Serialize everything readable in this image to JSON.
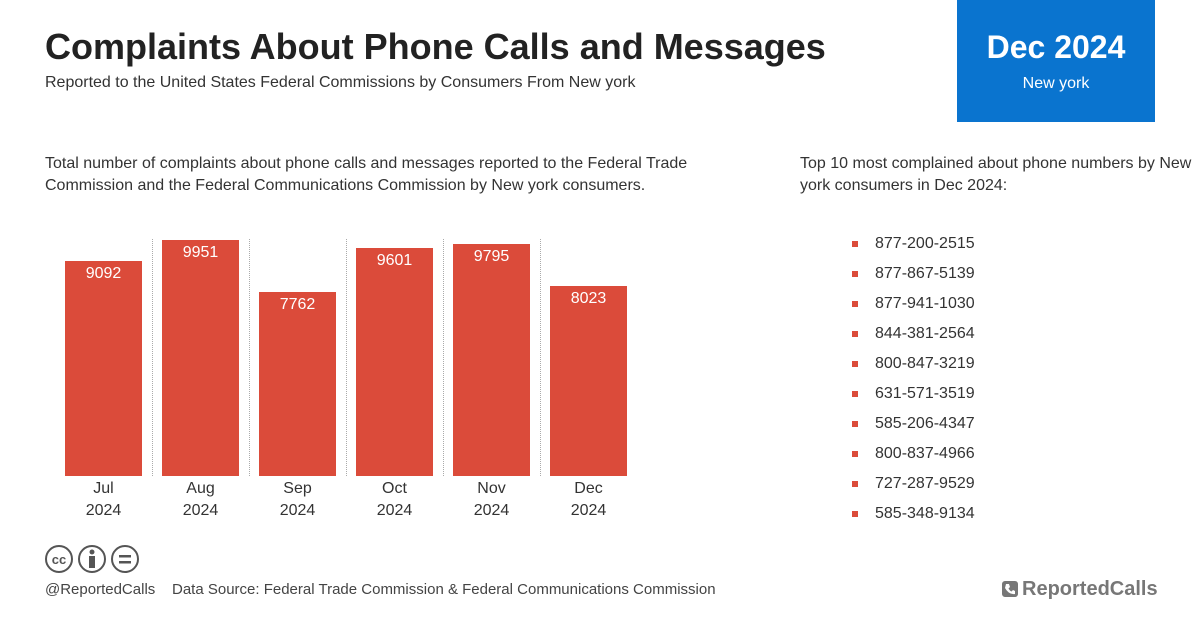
{
  "header": {
    "title": "Complaints About Phone Calls and Messages",
    "subtitle": "Reported to the United States Federal Commissions by Consumers From New york"
  },
  "badge": {
    "period": "Dec 2024",
    "location": "New york"
  },
  "chart_data": {
    "type": "bar",
    "description": "Total number of complaints about phone calls and messages reported to the Federal Trade Commission and the Federal Communications Commission by New york consumers.",
    "categories": [
      "Jul 2024",
      "Aug 2024",
      "Sep 2024",
      "Oct 2024",
      "Nov 2024",
      "Dec 2024"
    ],
    "values": [
      9092,
      9951,
      7762,
      9601,
      9795,
      8023
    ],
    "color": "#db4b3a",
    "ylim": [
      0,
      10000
    ]
  },
  "top_numbers": {
    "heading": "Top 10 most complained about phone numbers by New york consumers in Dec 2024:",
    "items": [
      "877-200-2515",
      "877-867-5139",
      "877-941-1030",
      "844-381-2564",
      "800-847-3219",
      "631-571-3519",
      "585-206-4347",
      "800-837-4966",
      "727-287-9529",
      "585-348-9134"
    ]
  },
  "footer": {
    "handle": "@ReportedCalls",
    "source": "Data Source: Federal Trade Commission & Federal Communications Commission",
    "brand": "ReportedCalls"
  }
}
